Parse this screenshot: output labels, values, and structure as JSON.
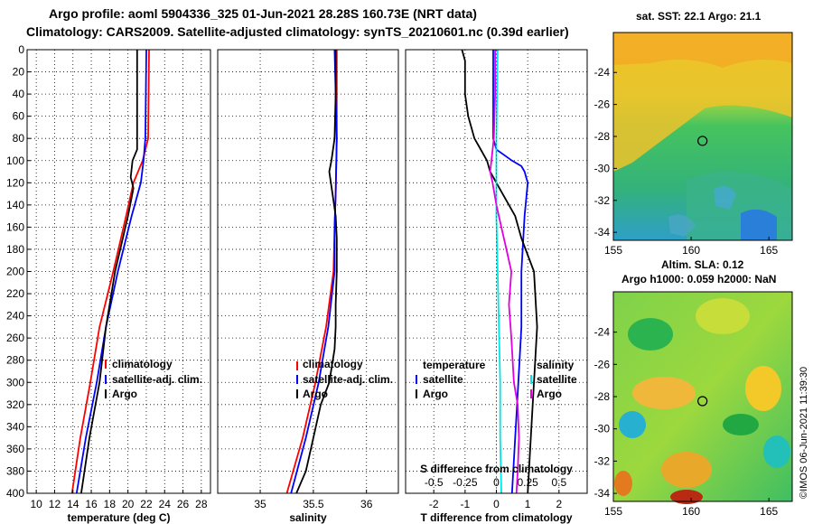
{
  "header": {
    "line1": "Argo profile: aoml 5904336_325 01-Jun-2021 28.28S 160.73E (NRT data)",
    "line2": "Climatology: CARS2009. Satellite-adjusted climatology: synTS_20210601.nc (0.39d earlier)"
  },
  "colors": {
    "climatology": "#ff0000",
    "satellite": "#0000ff",
    "argo": "#000000",
    "sat_salinity": "#00e5e5",
    "argo_salinity": "#e000e0"
  },
  "chart_data": [
    {
      "id": "temperature",
      "type": "line",
      "xlabel": "temperature (deg C)",
      "ylabel": "",
      "xlim": [
        9,
        29
      ],
      "ylim": [
        400,
        0
      ],
      "grid": true,
      "xticks": [
        10,
        12,
        14,
        16,
        18,
        20,
        22,
        24,
        26,
        28
      ],
      "yticks": [
        0,
        20,
        40,
        60,
        80,
        100,
        120,
        140,
        160,
        180,
        200,
        220,
        240,
        260,
        280,
        300,
        320,
        340,
        360,
        380,
        400
      ],
      "legend": [
        "climatology",
        "satellite-adj. clim.",
        "Argo"
      ],
      "series": [
        {
          "name": "climatology",
          "depth": [
            0,
            80,
            100,
            120,
            150,
            200,
            250,
            300,
            350,
            400
          ],
          "values": [
            22.3,
            22.2,
            21.6,
            20.6,
            19.8,
            18.4,
            16.9,
            15.9,
            14.8,
            13.9
          ]
        },
        {
          "name": "satellite-adj. clim.",
          "depth": [
            0,
            80,
            100,
            120,
            150,
            200,
            250,
            300,
            350,
            400
          ],
          "values": [
            22.0,
            21.9,
            21.7,
            21.4,
            20.4,
            18.9,
            17.6,
            16.6,
            15.4,
            14.4
          ]
        },
        {
          "name": "Argo",
          "depth": [
            0,
            90,
            100,
            115,
            125,
            150,
            200,
            250,
            300,
            350,
            400
          ],
          "values": [
            21.0,
            21.0,
            20.5,
            20.3,
            20.6,
            20.0,
            18.6,
            17.6,
            16.9,
            15.8,
            14.9
          ]
        }
      ]
    },
    {
      "id": "salinity",
      "type": "line",
      "xlabel": "salinity",
      "xlim": [
        34.6,
        36.3
      ],
      "ylim": [
        400,
        0
      ],
      "grid": true,
      "xticks": [
        35,
        35.5,
        36
      ],
      "legend": [
        "climatology",
        "satellite-adj. clim.",
        "Argo"
      ],
      "series": [
        {
          "name": "climatology",
          "depth": [
            0,
            80,
            130,
            160,
            200,
            250,
            300,
            350,
            400
          ],
          "values": [
            35.72,
            35.72,
            35.71,
            35.7,
            35.69,
            35.62,
            35.52,
            35.4,
            35.25
          ]
        },
        {
          "name": "satellite-adj. clim.",
          "depth": [
            0,
            80,
            130,
            160,
            200,
            250,
            300,
            350,
            400
          ],
          "values": [
            35.7,
            35.72,
            35.71,
            35.7,
            35.7,
            35.64,
            35.55,
            35.43,
            35.29
          ]
        },
        {
          "name": "Argo",
          "depth": [
            0,
            40,
            80,
            100,
            110,
            130,
            150,
            170,
            200,
            230,
            250,
            270,
            300,
            320,
            350,
            380,
            400
          ],
          "values": [
            35.71,
            35.71,
            35.7,
            35.67,
            35.65,
            35.68,
            35.71,
            35.72,
            35.72,
            35.71,
            35.71,
            35.7,
            35.65,
            35.57,
            35.5,
            35.43,
            35.34
          ]
        }
      ]
    },
    {
      "id": "difference",
      "type": "line",
      "xlabel": "T difference from climatology",
      "xlabel2": "S difference from climatology",
      "xlim": [
        -2.9,
        2.9
      ],
      "xlim2": [
        -0.725,
        0.725
      ],
      "ylim": [
        400,
        0
      ],
      "grid": true,
      "xticks": [
        -2,
        -1,
        0,
        1,
        2
      ],
      "xticks2": [
        -0.5,
        -0.25,
        0,
        0.25,
        0.5
      ],
      "xticklabels2": [
        "-0.5",
        "-0.25",
        "0",
        "0.25",
        "0.5"
      ],
      "legend_temperature_title": "temperature",
      "legend_salinity_title": "salinity",
      "legend_temperature": [
        "satellite",
        "Argo"
      ],
      "legend_salinity": [
        "satellite",
        "Argo"
      ],
      "series": [
        {
          "name": "T satellite",
          "depth": [
            0,
            80,
            90,
            100,
            105,
            110,
            120,
            150,
            200,
            250,
            300,
            350,
            400
          ],
          "values": [
            -0.1,
            -0.1,
            0.0,
            0.5,
            0.8,
            0.9,
            1.0,
            0.9,
            0.8,
            0.8,
            0.7,
            0.6,
            0.5
          ]
        },
        {
          "name": "T Argo",
          "depth": [
            0,
            10,
            40,
            60,
            80,
            90,
            100,
            110,
            120,
            130,
            150,
            170,
            200,
            250,
            300,
            350,
            400
          ],
          "values": [
            -1.1,
            -1.0,
            -1.0,
            -0.9,
            -0.7,
            -0.5,
            -0.3,
            -0.2,
            0.0,
            0.2,
            0.6,
            0.8,
            1.2,
            1.3,
            1.2,
            1.1,
            1.0
          ]
        },
        {
          "name": "S satellite",
          "depth": [
            0,
            80,
            100,
            120,
            150,
            200,
            250,
            300,
            350,
            400
          ],
          "values": [
            0.01,
            0.0,
            0.0,
            0.0,
            0.0,
            0.01,
            0.02,
            0.03,
            0.03,
            0.04
          ]
        },
        {
          "name": "S Argo",
          "depth": [
            0,
            40,
            80,
            100,
            110,
            120,
            140,
            160,
            180,
            200,
            230,
            260,
            300,
            320,
            350,
            380,
            400
          ],
          "values": [
            -0.01,
            -0.01,
            -0.02,
            -0.04,
            -0.05,
            -0.03,
            0.0,
            0.04,
            0.08,
            0.12,
            0.1,
            0.12,
            0.14,
            0.17,
            0.18,
            0.17,
            0.16
          ]
        }
      ]
    }
  ],
  "maps": [
    {
      "id": "sst-map",
      "title": "sat. SST: 22.1 Argo: 21.1",
      "xticks": [
        155,
        160,
        165
      ],
      "yticks": [
        -24,
        -26,
        -28,
        -30,
        -32,
        -34
      ],
      "lon_range": [
        155,
        166.5
      ],
      "lat_range": [
        -21.5,
        -34.5
      ],
      "argo_lon": 160.73,
      "argo_lat": -28.28
    },
    {
      "id": "sla-map",
      "title1": "Altim. SLA: 0.12",
      "title2": "Argo h1000: 0.059 h2000: NaN",
      "xticks": [
        155,
        160,
        165
      ],
      "yticks": [
        -24,
        -26,
        -28,
        -30,
        -32,
        -34
      ],
      "lon_range": [
        155,
        166.5
      ],
      "lat_range": [
        -21.5,
        -34.5
      ],
      "argo_lon": 160.73,
      "argo_lat": -28.28
    }
  ],
  "credit": "©IMOS 06-Jun-2021 11:39:30"
}
